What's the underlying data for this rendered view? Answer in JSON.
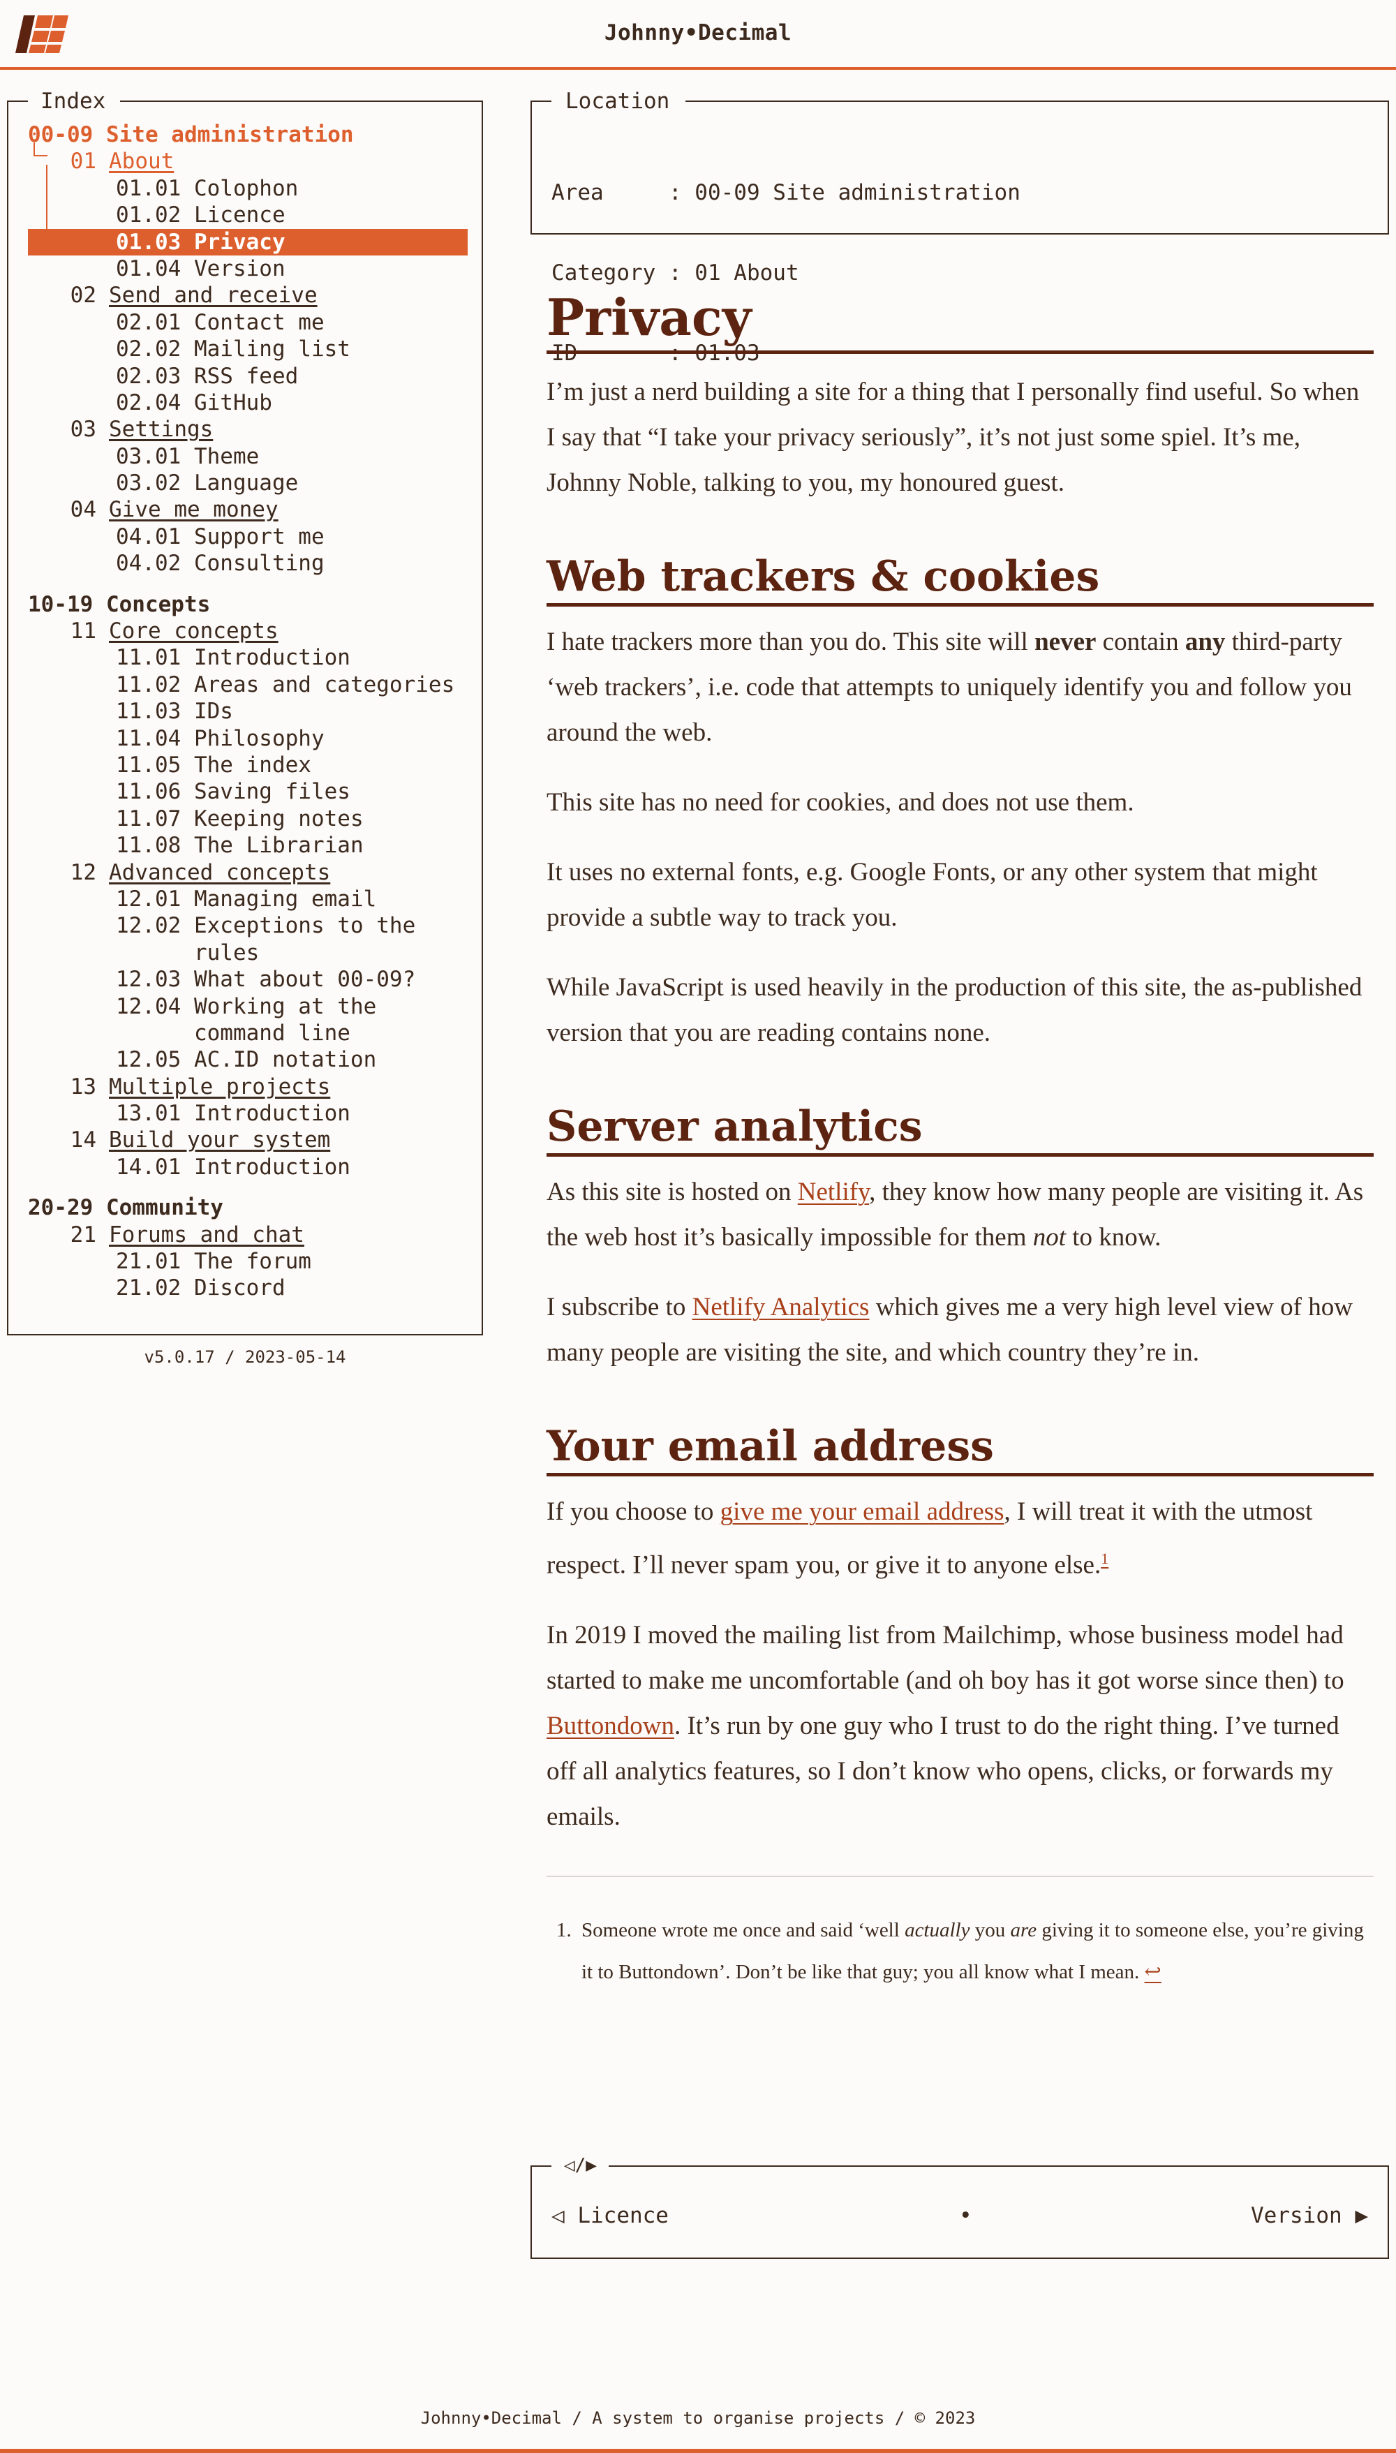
{
  "header": {
    "site_title": "Johnny•Decimal",
    "logo_icon": "jd-logo-icon"
  },
  "sidebar": {
    "legend": "Index",
    "areas": [
      {
        "label": "00-09 Site administration",
        "active": true,
        "categories": [
          {
            "num": "01",
            "label": "About",
            "active": true,
            "ids": [
              {
                "label": "01.01 Colophon"
              },
              {
                "label": "01.02 Licence"
              },
              {
                "label": "01.03 Privacy",
                "active": true
              },
              {
                "label": "01.04 Version"
              }
            ]
          },
          {
            "num": "02",
            "label": "Send and receive",
            "ids": [
              {
                "label": "02.01 Contact me"
              },
              {
                "label": "02.02 Mailing list"
              },
              {
                "label": "02.03 RSS feed"
              },
              {
                "label": "02.04 GitHub"
              }
            ]
          },
          {
            "num": "03",
            "label": "Settings",
            "ids": [
              {
                "label": "03.01 Theme"
              },
              {
                "label": "03.02 Language"
              }
            ]
          },
          {
            "num": "04",
            "label": "Give me money",
            "ids": [
              {
                "label": "04.01 Support me"
              },
              {
                "label": "04.02 Consulting"
              }
            ]
          }
        ]
      },
      {
        "label": "10-19 Concepts",
        "categories": [
          {
            "num": "11",
            "label": "Core concepts",
            "ids": [
              {
                "label": "11.01 Introduction"
              },
              {
                "label": "11.02 Areas and categories"
              },
              {
                "label": "11.03 IDs"
              },
              {
                "label": "11.04 Philosophy"
              },
              {
                "label": "11.05 The index"
              },
              {
                "label": "11.06 Saving files"
              },
              {
                "label": "11.07 Keeping notes"
              },
              {
                "label": "11.08 The Librarian"
              }
            ]
          },
          {
            "num": "12",
            "label": "Advanced concepts",
            "ids": [
              {
                "label": "12.01 Managing email"
              },
              {
                "label": "12.02 Exceptions to the\n      rules"
              },
              {
                "label": "12.03 What about 00-09?"
              },
              {
                "label": "12.04 Working at the\n      command line"
              },
              {
                "label": "12.05 AC.ID notation"
              }
            ]
          },
          {
            "num": "13",
            "label": "Multiple projects",
            "ids": [
              {
                "label": "13.01 Introduction"
              }
            ]
          },
          {
            "num": "14",
            "label": "Build your system",
            "ids": [
              {
                "label": "14.01 Introduction"
              }
            ]
          }
        ]
      },
      {
        "label": "20-29 Community",
        "categories": [
          {
            "num": "21",
            "label": "Forums and chat",
            "ids": [
              {
                "label": "21.01 The forum"
              },
              {
                "label": "21.02 Discord"
              }
            ]
          }
        ]
      }
    ],
    "version": "v5.0.17 / 2023-05-14"
  },
  "location": {
    "legend": "Location",
    "area_key": "Area     : 00-09 Site administration",
    "category_key": "Category : 01 About",
    "id_key": "ID       : 01.03"
  },
  "article": {
    "title": "Privacy",
    "intro": "I’m just a nerd building a site for a thing that I personally find useful. So when I say that “I take your privacy seriously”, it’s not just some spiel. It’s me, Johnny Noble, talking to you, my honoured guest.",
    "h_trackers": "Web trackers & cookies",
    "trackers_a": "I hate trackers more than you do. This site will ",
    "trackers_never": "never",
    "trackers_b": " contain ",
    "trackers_any": "any",
    "trackers_c": " third-party ‘web trackers’, i.e. code that attempts to uniquely identify you and follow you around the web.",
    "cookies": "This site has no need for cookies, and does not use them.",
    "fonts": "It uses no external fonts, e.g. Google Fonts, or any other system that might provide a subtle way to track you.",
    "javascript": "While JavaScript is used heavily in the production of this site, the as-published version that you are reading contains none.",
    "h_analytics": "Server analytics",
    "analytics_a": "As this site is hosted on ",
    "analytics_link": "Netlify",
    "analytics_b": ", they know how many people are visiting it. As the web host it’s basically impossible for them ",
    "analytics_not": "not",
    "analytics_c": " to know.",
    "subscribe_a": "I subscribe to ",
    "subscribe_link": "Netlify Analytics",
    "subscribe_b": " which gives me a very high level view of how many people are visiting the site, and which country they’re in.",
    "h_email": "Your email address",
    "email_a": "If you choose to ",
    "email_link": "give me your email address",
    "email_b": ", I will treat it with the utmost respect. I’ll never spam you, or give it to anyone else.",
    "footnote_ref": "1",
    "history_a": "In 2019 I moved the mailing list from Mailchimp, whose business model had started to make me uncomfortable (and oh boy has it got worse since then) to ",
    "history_link": "Buttondown",
    "history_b": ". It’s run by one guy who I trust to do the right thing. I’ve turned off all analytics features, so I don’t know who opens, clicks, or forwards my emails.",
    "fn_num": "1.",
    "fn_a": "Someone wrote me once and said ‘well ",
    "fn_actually": "actually",
    "fn_b": " you ",
    "fn_are": "are",
    "fn_c": " giving it to someone else, you’re giving it to Buttondown’. Don’t be like that guy; you all know what I mean. ",
    "fn_back": "↩"
  },
  "pager": {
    "legend": "◁/▶",
    "prev": "◁ Licence",
    "dot": "•",
    "next": "Version ▶"
  },
  "footer": {
    "text": "Johnny•Decimal / A system to organise projects / © 2023"
  },
  "colors": {
    "accent": "#dd5f2d",
    "heading": "#5c2410",
    "text": "#3d2a1e",
    "link": "#a8401a",
    "background": "#fcfbfa"
  }
}
